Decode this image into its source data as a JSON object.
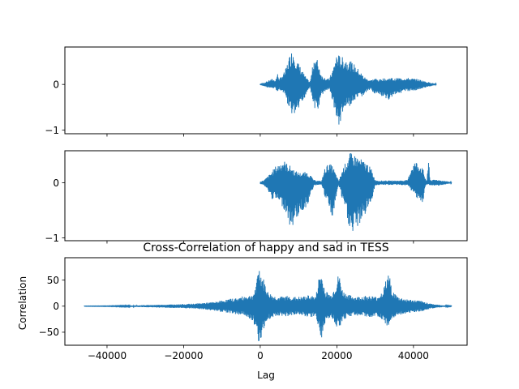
{
  "colors": {
    "line": "#1f77b4",
    "axes": "#000000",
    "background": "#ffffff"
  },
  "chart_data": [
    {
      "type": "line",
      "title": "",
      "xlabel": "",
      "ylabel": "",
      "xlim": [
        -51000,
        54000
      ],
      "ylim": [
        -1.08,
        0.82
      ],
      "yticks": [
        -1,
        0
      ],
      "ytick_labels": [
        "−1",
        "0"
      ],
      "xticks": [
        -40000,
        -20000,
        0,
        20000,
        40000
      ],
      "xtick_labels_visible": false,
      "grid": false,
      "legend": "none",
      "series": [
        {
          "x_start": 0,
          "x_end": 46000,
          "envelope": [
            [
              0,
              0.02,
              -0.02
            ],
            [
              1000,
              0.04,
              -0.04
            ],
            [
              3000,
              0.12,
              -0.1
            ],
            [
              4000,
              0.1,
              -0.08
            ],
            [
              4500,
              0.25,
              -0.2
            ],
            [
              5000,
              0.12,
              -0.1
            ],
            [
              6500,
              0.3,
              -0.25
            ],
            [
              7500,
              0.6,
              -0.55
            ],
            [
              8500,
              0.8,
              -0.72
            ],
            [
              9500,
              0.55,
              -0.65
            ],
            [
              11000,
              0.3,
              -0.45
            ],
            [
              12000,
              0.15,
              -0.2
            ],
            [
              13000,
              0.05,
              -0.05
            ],
            [
              13500,
              0.3,
              -0.3
            ],
            [
              14000,
              0.6,
              -0.5
            ],
            [
              15000,
              0.55,
              -0.6
            ],
            [
              16000,
              0.2,
              -0.25
            ],
            [
              17000,
              0.15,
              -0.15
            ],
            [
              18000,
              0.12,
              -0.1
            ],
            [
              19000,
              0.35,
              -0.4
            ],
            [
              20000,
              0.7,
              -0.8
            ],
            [
              20500,
              0.65,
              -1.0
            ],
            [
              21500,
              0.6,
              -0.65
            ],
            [
              23000,
              0.55,
              -0.5
            ],
            [
              24500,
              0.45,
              -0.4
            ],
            [
              26000,
              0.3,
              -0.3
            ],
            [
              27000,
              0.18,
              -0.25
            ],
            [
              28000,
              0.12,
              -0.15
            ],
            [
              29000,
              0.1,
              -0.12
            ],
            [
              30000,
              0.14,
              -0.22
            ],
            [
              31000,
              0.1,
              -0.25
            ],
            [
              32000,
              0.14,
              -0.28
            ],
            [
              33000,
              0.12,
              -0.38
            ],
            [
              34000,
              0.16,
              -0.3
            ],
            [
              35000,
              0.12,
              -0.22
            ],
            [
              36000,
              0.15,
              -0.2
            ],
            [
              37000,
              0.14,
              -0.18
            ],
            [
              38000,
              0.15,
              -0.16
            ],
            [
              39000,
              0.14,
              -0.15
            ],
            [
              40000,
              0.13,
              -0.14
            ],
            [
              41000,
              0.12,
              -0.12
            ],
            [
              42000,
              0.1,
              -0.1
            ],
            [
              43000,
              0.07,
              -0.08
            ],
            [
              44000,
              0.05,
              -0.05
            ],
            [
              45000,
              0.03,
              -0.03
            ],
            [
              46000,
              0.01,
              -0.01
            ]
          ]
        }
      ]
    },
    {
      "type": "line",
      "title": "",
      "xlabel": "",
      "ylabel": "",
      "xlim": [
        -51000,
        54000
      ],
      "ylim": [
        -1.05,
        0.58
      ],
      "yticks": [
        -1,
        0
      ],
      "ytick_labels": [
        "−1",
        "0"
      ],
      "xticks": [
        -40000,
        -20000,
        0,
        20000,
        40000
      ],
      "xtick_labels_visible": false,
      "grid": false,
      "legend": "none",
      "series": [
        {
          "x_start": 0,
          "x_end": 50000,
          "envelope": [
            [
              0,
              0.02,
              -0.02
            ],
            [
              1000,
              0.05,
              -0.05
            ],
            [
              2000,
              0.12,
              -0.15
            ],
            [
              3000,
              0.2,
              -0.3
            ],
            [
              4000,
              0.3,
              -0.3
            ],
            [
              5000,
              0.35,
              -0.38
            ],
            [
              6000,
              0.42,
              -0.45
            ],
            [
              7000,
              0.35,
              -0.6
            ],
            [
              8000,
              0.3,
              -0.88
            ],
            [
              9000,
              0.22,
              -0.7
            ],
            [
              10500,
              0.18,
              -0.55
            ],
            [
              12000,
              0.2,
              -0.45
            ],
            [
              13000,
              0.15,
              -0.3
            ],
            [
              14000,
              0.05,
              -0.05
            ],
            [
              15000,
              0.04,
              -0.04
            ],
            [
              16000,
              0.03,
              -0.03
            ],
            [
              17000,
              0.3,
              -0.3
            ],
            [
              18000,
              0.35,
              -0.45
            ],
            [
              19000,
              0.3,
              -0.7
            ],
            [
              19500,
              0.2,
              -0.4
            ],
            [
              20500,
              0.03,
              -0.03
            ],
            [
              21500,
              0.25,
              -0.35
            ],
            [
              22500,
              0.4,
              -0.6
            ],
            [
              23500,
              0.55,
              -0.9
            ],
            [
              24000,
              0.52,
              -1.0
            ],
            [
              25000,
              0.5,
              -0.85
            ],
            [
              26500,
              0.42,
              -0.7
            ],
            [
              28000,
              0.35,
              -0.5
            ],
            [
              29000,
              0.25,
              -0.35
            ],
            [
              30000,
              0.05,
              -0.05
            ],
            [
              31000,
              0.04,
              -0.04
            ],
            [
              33000,
              0.04,
              -0.04
            ],
            [
              36000,
              0.04,
              -0.04
            ],
            [
              38500,
              0.05,
              -0.05
            ],
            [
              39500,
              0.3,
              -0.15
            ],
            [
              40500,
              0.4,
              -0.25
            ],
            [
              41500,
              0.35,
              -0.3
            ],
            [
              42500,
              0.25,
              -0.42
            ],
            [
              43000,
              0.1,
              -0.1
            ],
            [
              43500,
              0.03,
              -0.03
            ],
            [
              44000,
              0.45,
              -0.03
            ],
            [
              44300,
              0.06,
              -0.06
            ],
            [
              44800,
              0.05,
              -0.05
            ],
            [
              46000,
              0.06,
              -0.06
            ],
            [
              47500,
              0.04,
              -0.04
            ],
            [
              48500,
              0.03,
              -0.03
            ],
            [
              50000,
              0.01,
              -0.01
            ]
          ]
        }
      ]
    },
    {
      "type": "line",
      "title": "Cross-Correlation of happy and sad in TESS",
      "xlabel": "Lag",
      "ylabel": "Correlation",
      "xlim": [
        -51000,
        54000
      ],
      "ylim": [
        -75,
        93
      ],
      "yticks": [
        -50,
        0,
        50
      ],
      "ytick_labels": [
        "−50",
        "0",
        "50"
      ],
      "xticks": [
        -40000,
        -20000,
        0,
        20000,
        40000
      ],
      "xtick_labels": [
        "−40000",
        "−20000",
        "0",
        "20000",
        "40000"
      ],
      "xtick_labels_visible": true,
      "grid": false,
      "legend": "none",
      "series": [
        {
          "x_start": -46000,
          "x_end": 50000,
          "envelope": [
            [
              -46000,
              0.3,
              -0.3
            ],
            [
              -40000,
              0.5,
              -0.5
            ],
            [
              -35000,
              1.0,
              -1.0
            ],
            [
              -30000,
              2.0,
              -2.0
            ],
            [
              -25000,
              3.0,
              -3.0
            ],
            [
              -20000,
              4.0,
              -4.0
            ],
            [
              -17000,
              5.0,
              -5.0
            ],
            [
              -14000,
              7.0,
              -7.0
            ],
            [
              -12000,
              8.0,
              -9.0
            ],
            [
              -10000,
              11.0,
              -11.0
            ],
            [
              -8000,
              14.0,
              -13.0
            ],
            [
              -6000,
              16.0,
              -16.0
            ],
            [
              -4000,
              20.0,
              -18.0
            ],
            [
              -2000,
              22.0,
              -28.0
            ],
            [
              -1000,
              40.0,
              -45.0
            ],
            [
              -500,
              85.0,
              -70.0
            ],
            [
              0,
              68.0,
              -65.0
            ],
            [
              1000,
              50.0,
              -45.0
            ],
            [
              2000,
              28.0,
              -28.0
            ],
            [
              3500,
              20.0,
              -20.0
            ],
            [
              5000,
              18.0,
              -18.0
            ],
            [
              7000,
              20.0,
              -20.0
            ],
            [
              9000,
              18.0,
              -16.0
            ],
            [
              11000,
              18.0,
              -18.0
            ],
            [
              13000,
              22.0,
              -22.0
            ],
            [
              14500,
              18.0,
              -18.0
            ],
            [
              15500,
              65.0,
              -50.0
            ],
            [
              16000,
              62.0,
              -68.0
            ],
            [
              17000,
              30.0,
              -30.0
            ],
            [
              18500,
              22.0,
              -20.0
            ],
            [
              20000,
              48.0,
              -40.0
            ],
            [
              20500,
              65.0,
              -42.0
            ],
            [
              21500,
              30.0,
              -30.0
            ],
            [
              23000,
              22.0,
              -20.0
            ],
            [
              25000,
              18.0,
              -18.0
            ],
            [
              27000,
              20.0,
              -20.0
            ],
            [
              29000,
              20.0,
              -22.0
            ],
            [
              30500,
              18.0,
              -18.0
            ],
            [
              32000,
              30.0,
              -30.0
            ],
            [
              33500,
              67.0,
              -48.0
            ],
            [
              34500,
              30.0,
              -25.0
            ],
            [
              36000,
              18.0,
              -18.0
            ],
            [
              38000,
              14.0,
              -14.0
            ],
            [
              40000,
              12.0,
              -12.0
            ],
            [
              42000,
              10.0,
              -10.0
            ],
            [
              44000,
              6.0,
              -6.0
            ],
            [
              46000,
              3.0,
              -3.0
            ],
            [
              48000,
              1.5,
              -1.5
            ],
            [
              50000,
              0.5,
              -0.5
            ]
          ]
        }
      ]
    }
  ]
}
